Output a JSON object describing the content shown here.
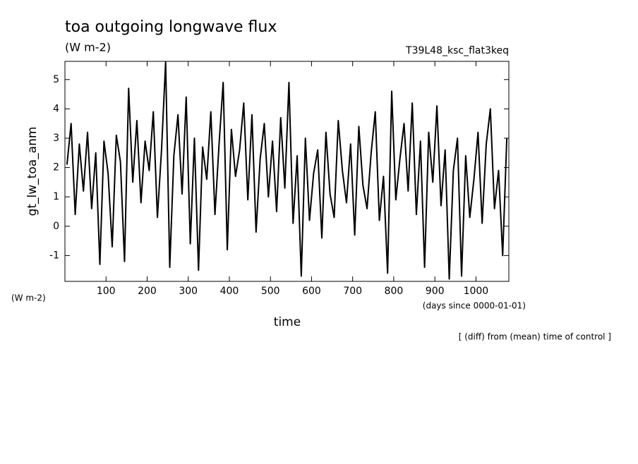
{
  "chart_data": {
    "type": "line",
    "title": "toa outgoing longwave flux",
    "subtitle": "(W m-2)",
    "experiment": "T39L48_ksc_flat3keq",
    "y_label": "gt_lw_toa_anm",
    "y_units": "(W m-2)",
    "x_label": "time",
    "x_units": "(days since 0000-01-01)",
    "note": "[ (diff) from (mean) time of control ]",
    "xlim": [
      0,
      1080
    ],
    "ylim": [
      -1.88,
      5.62
    ],
    "xticks": [
      100,
      200,
      300,
      400,
      500,
      600,
      700,
      800,
      900,
      1000
    ],
    "yticks": [
      -1,
      0,
      1,
      2,
      3,
      4,
      5
    ],
    "x": [
      5,
      15,
      25,
      35,
      45,
      55,
      65,
      75,
      85,
      95,
      105,
      115,
      125,
      135,
      145,
      155,
      165,
      175,
      185,
      195,
      205,
      215,
      225,
      235,
      245,
      255,
      265,
      275,
      285,
      295,
      305,
      315,
      325,
      335,
      345,
      355,
      365,
      375,
      385,
      395,
      405,
      415,
      425,
      435,
      445,
      455,
      465,
      475,
      485,
      495,
      505,
      515,
      525,
      535,
      545,
      555,
      565,
      575,
      585,
      595,
      605,
      615,
      625,
      635,
      645,
      655,
      665,
      675,
      685,
      695,
      705,
      715,
      725,
      735,
      745,
      755,
      765,
      775,
      785,
      795,
      805,
      815,
      825,
      835,
      845,
      855,
      865,
      875,
      885,
      895,
      905,
      915,
      925,
      935,
      945,
      955,
      965,
      975,
      985,
      995,
      1005,
      1015,
      1025,
      1035,
      1045,
      1055,
      1065,
      1075
    ],
    "series": [
      {
        "color": "#000000",
        "values": [
          2.1,
          3.5,
          0.4,
          2.8,
          1.2,
          3.2,
          0.6,
          2.5,
          -1.3,
          2.9,
          1.8,
          -0.7,
          3.1,
          2.2,
          -1.2,
          4.7,
          1.5,
          3.6,
          0.8,
          2.9,
          1.9,
          3.9,
          0.3,
          2.6,
          5.6,
          -1.4,
          2.4,
          3.8,
          1.1,
          4.4,
          -0.6,
          3.0,
          -1.5,
          2.7,
          1.6,
          3.9,
          0.4,
          2.8,
          4.9,
          -0.8,
          3.3,
          1.7,
          2.6,
          4.2,
          0.9,
          3.8,
          -0.2,
          2.3,
          3.5,
          1.0,
          2.9,
          0.5,
          3.7,
          1.3,
          4.9,
          0.1,
          2.4,
          -1.7,
          3.0,
          0.2,
          1.8,
          2.6,
          -0.4,
          3.2,
          1.1,
          0.3,
          3.6,
          1.9,
          0.8,
          2.8,
          -0.3,
          3.4,
          1.4,
          0.6,
          2.5,
          3.9,
          0.2,
          1.7,
          -1.6,
          4.6,
          0.9,
          2.3,
          3.5,
          1.2,
          4.2,
          0.4,
          2.9,
          -1.4,
          3.2,
          1.5,
          4.1,
          0.7,
          2.6,
          -1.8,
          1.9,
          3.0,
          -1.7,
          2.4,
          0.3,
          1.6,
          3.2,
          0.1,
          2.8,
          4.0,
          0.6,
          1.9,
          -1.0,
          3.0
        ]
      }
    ]
  }
}
